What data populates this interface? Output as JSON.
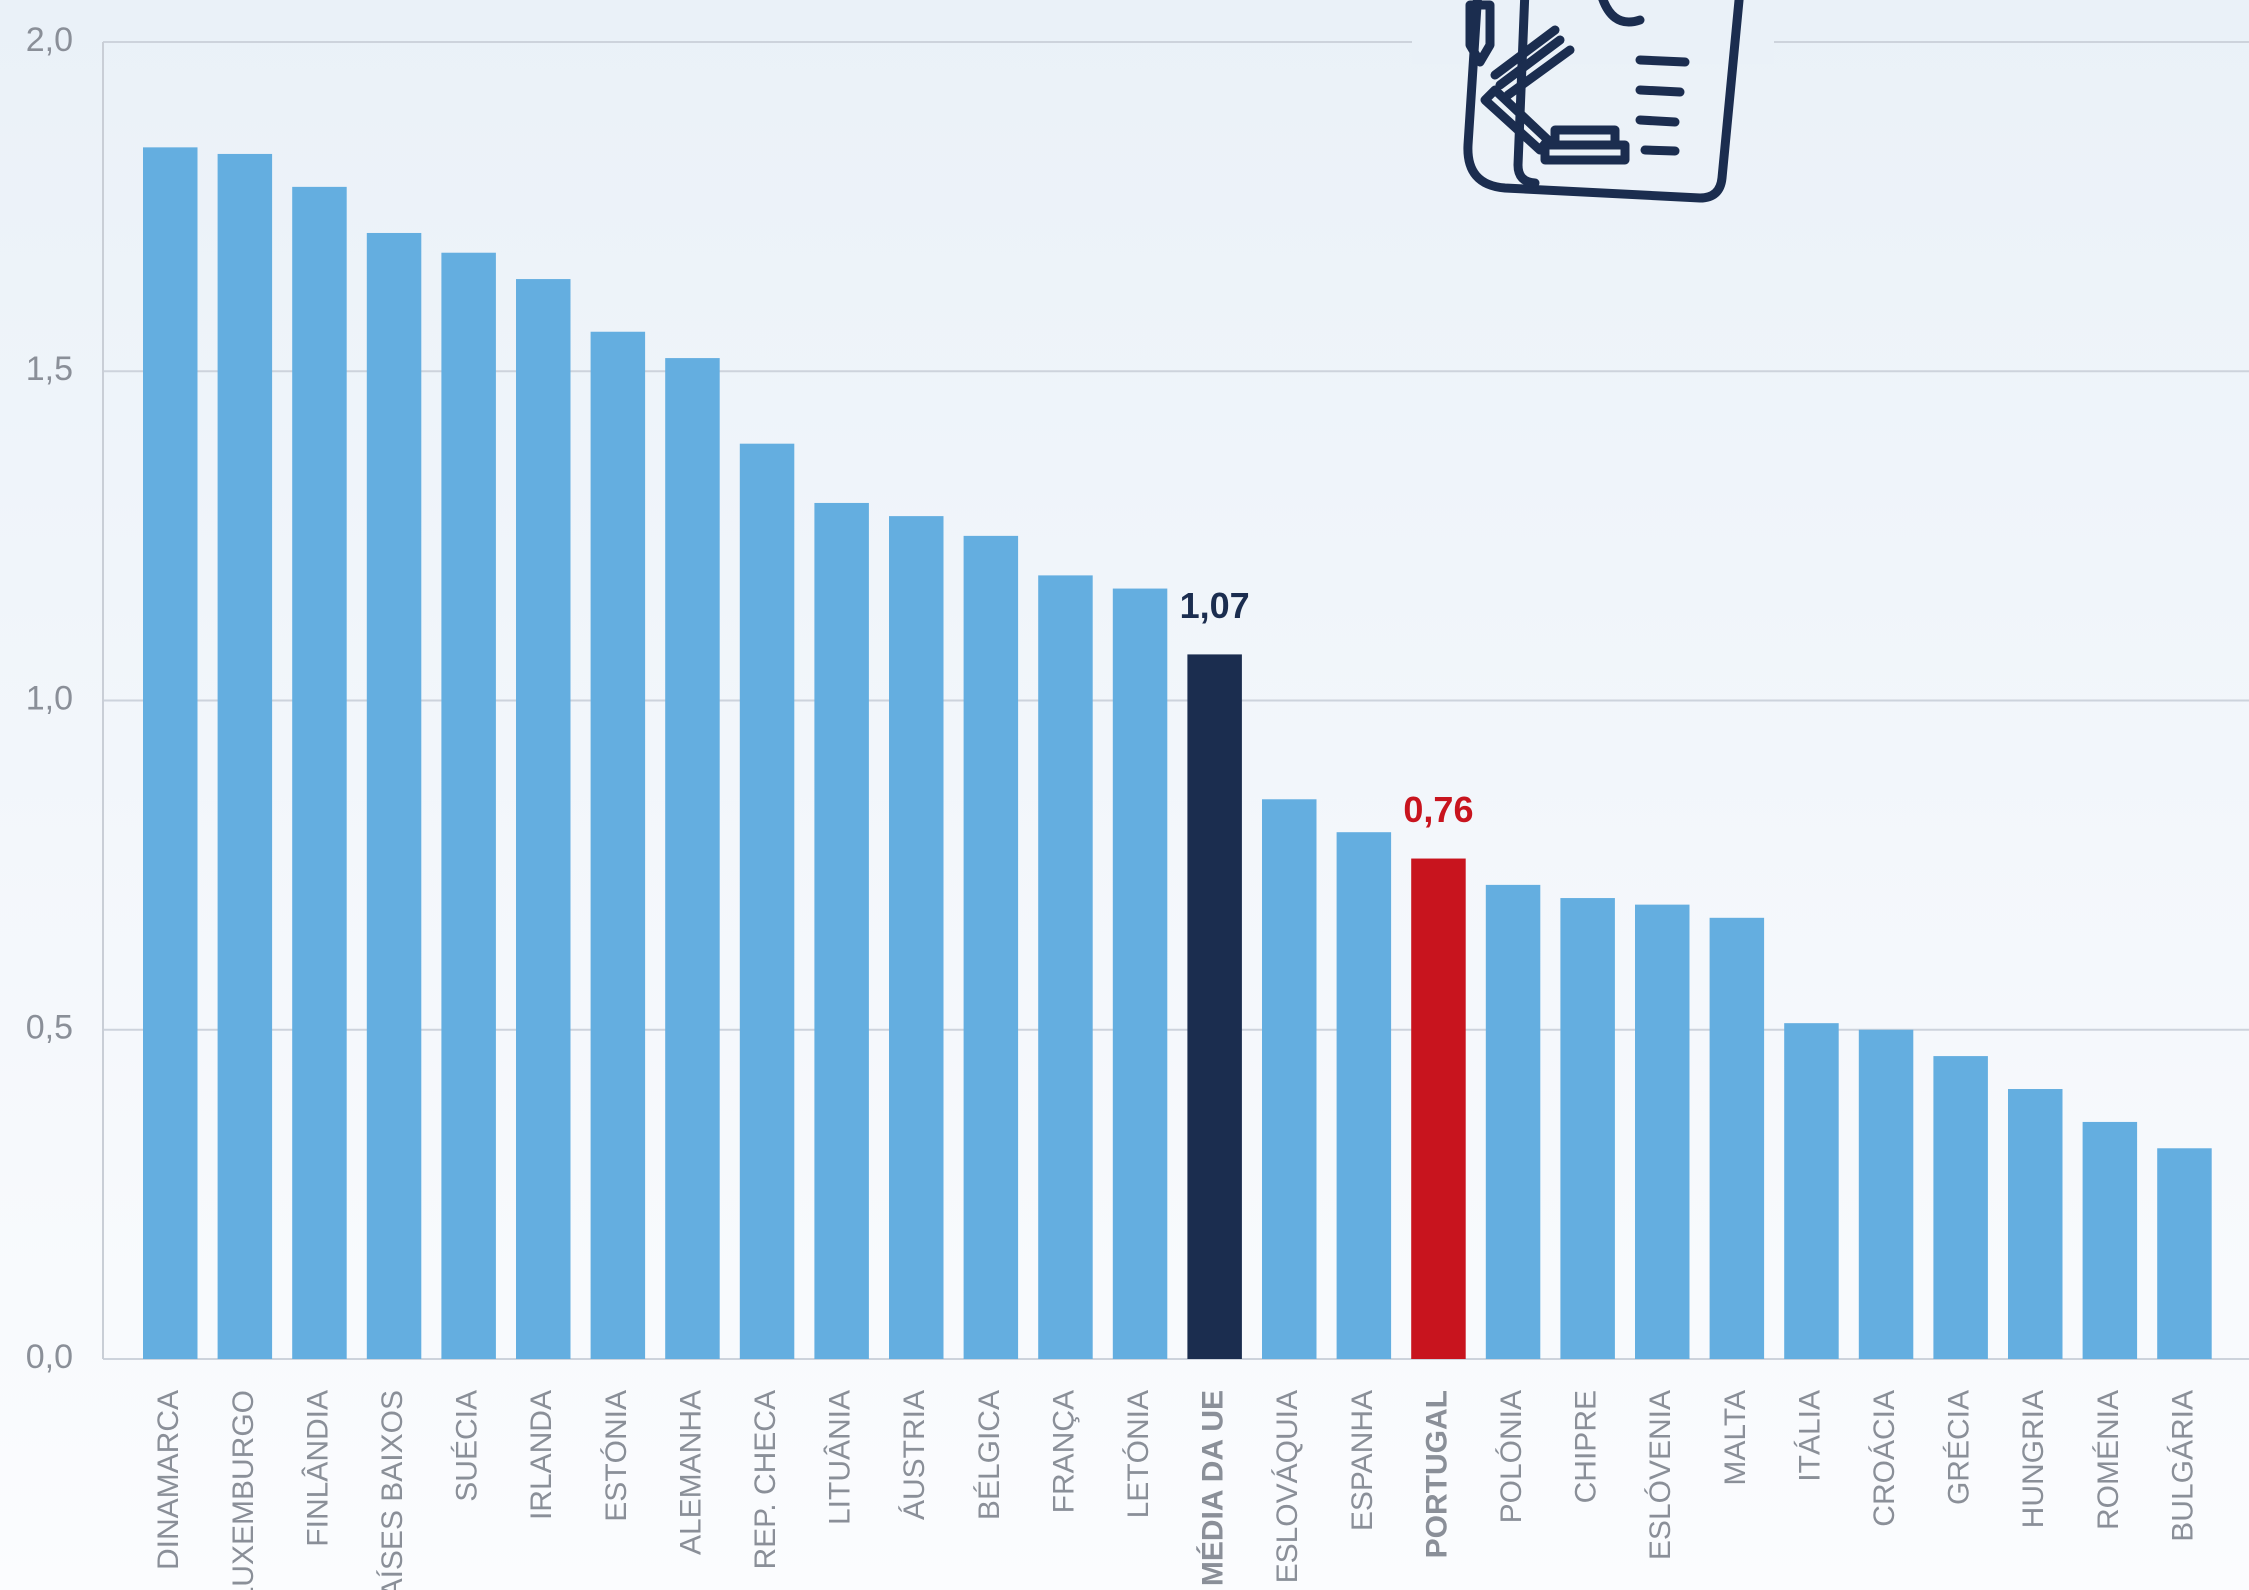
{
  "chart_data": {
    "type": "bar",
    "categories": [
      "DINAMARCA",
      "LUXEMBURGO",
      "FINLÂNDIA",
      "PAÍSES BAIXOS",
      "SUÉCIA",
      "IRLANDA",
      "ESTÓNIA",
      "ALEMANHA",
      "REP. CHECA",
      "LITUÂNIA",
      "ÁUSTRIA",
      "BÉLGICA",
      "FRANÇA",
      "LETÓNIA",
      "MÉDIA DA UE",
      "ESLOVÁQUIA",
      "ESPANHA",
      "PORTUGAL",
      "POLÓNIA",
      "CHIPRE",
      "ESLÓVENIA",
      "MALTA",
      "ITÁLIA",
      "CROÁCIA",
      "GRÉCIA",
      "HUNGRIA",
      "ROMÉNIA",
      "BULGÁRIA"
    ],
    "values": [
      1.84,
      1.83,
      1.78,
      1.71,
      1.68,
      1.64,
      1.56,
      1.52,
      1.39,
      1.3,
      1.28,
      1.25,
      1.19,
      1.17,
      1.07,
      0.85,
      0.8,
      0.76,
      0.72,
      0.7,
      0.69,
      0.67,
      0.51,
      0.5,
      0.46,
      0.41,
      0.36,
      0.32
    ],
    "value_labels": [
      null,
      null,
      null,
      null,
      null,
      null,
      null,
      null,
      null,
      null,
      null,
      null,
      null,
      null,
      "1,07",
      null,
      null,
      "0,76",
      null,
      null,
      null,
      null,
      null,
      null,
      null,
      null,
      null,
      null
    ],
    "colors": [
      "#64aee0",
      "#64aee0",
      "#64aee0",
      "#64aee0",
      "#64aee0",
      "#64aee0",
      "#64aee0",
      "#64aee0",
      "#64aee0",
      "#64aee0",
      "#64aee0",
      "#64aee0",
      "#64aee0",
      "#64aee0",
      "#1b2d4f",
      "#64aee0",
      "#64aee0",
      "#c8141e",
      "#64aee0",
      "#64aee0",
      "#64aee0",
      "#64aee0",
      "#64aee0",
      "#64aee0",
      "#64aee0",
      "#64aee0",
      "#64aee0",
      "#64aee0"
    ],
    "ylim": [
      0,
      2.0
    ],
    "yticks": [
      {
        "value": 0,
        "label": "0,0"
      },
      {
        "value": 0.5,
        "label": "0,5"
      },
      {
        "value": 1.0,
        "label": "1,0"
      },
      {
        "value": 1.5,
        "label": "1,5"
      },
      {
        "value": 2.0,
        "label": "2,0"
      }
    ],
    "grid": true
  }
}
